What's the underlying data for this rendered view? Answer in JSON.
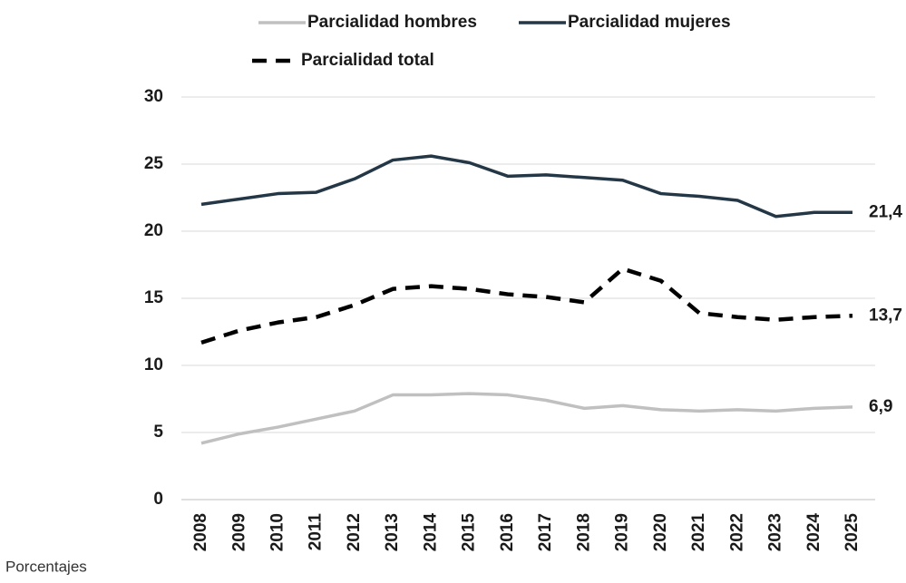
{
  "chart_data": {
    "type": "line",
    "note": "Porcentajes",
    "categories": [
      "2008",
      "2009",
      "2010",
      "2011",
      "2012",
      "2013",
      "2014",
      "2015",
      "2016",
      "2017",
      "2018",
      "2019",
      "2020",
      "2021",
      "2022",
      "2023",
      "2024",
      "2025"
    ],
    "series": [
      {
        "name": "Parcialidad hombres",
        "color": "#c0c0c0",
        "dashed": false,
        "values": [
          4.2,
          4.9,
          5.4,
          6.0,
          6.6,
          7.8,
          7.8,
          7.9,
          7.8,
          7.4,
          6.8,
          7.0,
          6.7,
          6.6,
          6.7,
          6.6,
          6.8,
          6.9
        ],
        "value_labels": [
          null,
          null,
          null,
          null,
          null,
          null,
          null,
          null,
          null,
          null,
          null,
          null,
          null,
          null,
          null,
          null,
          null,
          "6,9"
        ]
      },
      {
        "name": "Parcialidad mujeres",
        "color": "#243746",
        "dashed": false,
        "values": [
          22.0,
          22.4,
          22.8,
          22.9,
          23.9,
          25.3,
          25.6,
          25.1,
          24.1,
          24.2,
          24.0,
          23.8,
          22.8,
          22.6,
          22.3,
          21.1,
          21.4,
          21.4
        ],
        "value_labels": [
          null,
          null,
          null,
          null,
          null,
          null,
          null,
          null,
          null,
          null,
          null,
          null,
          null,
          null,
          null,
          null,
          null,
          "21,4"
        ]
      },
      {
        "name": "Parcialidad total",
        "color": "#000000",
        "dashed": true,
        "values": [
          11.7,
          12.6,
          13.2,
          13.6,
          14.5,
          15.7,
          15.9,
          15.7,
          15.3,
          15.1,
          14.7,
          17.2,
          16.3,
          13.9,
          13.6,
          13.4,
          13.6,
          13.7
        ],
        "value_labels": [
          null,
          null,
          null,
          null,
          null,
          null,
          null,
          null,
          null,
          null,
          null,
          null,
          null,
          null,
          null,
          null,
          null,
          "13,7"
        ]
      }
    ],
    "ylim": [
      0,
      30
    ],
    "yticks": [
      0,
      5,
      10,
      15,
      20,
      25,
      30
    ],
    "grid": true
  }
}
